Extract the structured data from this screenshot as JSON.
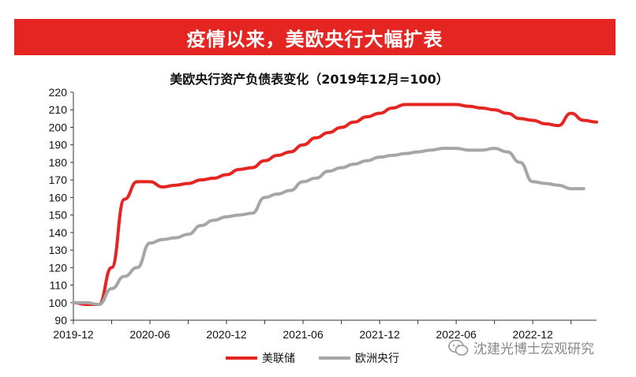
{
  "banner": {
    "title": "疫情以来，美欧央行大幅扩表",
    "color": "#e52521"
  },
  "watermark": {
    "text": "沈建光博士宏观研究",
    "icon": "wechat-icon"
  },
  "chart_data": {
    "type": "line",
    "title": "美欧央行资产负债表变化（2019年12月=100）",
    "xlabel": "",
    "ylabel": "",
    "ylim": [
      90,
      220
    ],
    "yticks": [
      90,
      100,
      110,
      120,
      130,
      140,
      150,
      160,
      170,
      180,
      190,
      200,
      210,
      220
    ],
    "xlim": [
      "2019-12",
      "2023-05"
    ],
    "xticks": [
      "2019-12",
      "2020-06",
      "2020-12",
      "2021-06",
      "2021-12",
      "2022-06",
      "2022-12"
    ],
    "grid": false,
    "legend": "bottom",
    "series": [
      {
        "name": "美联储",
        "color": "#e52521",
        "points": [
          [
            "2019-12",
            100
          ],
          [
            "2020-01",
            99
          ],
          [
            "2020-02",
            99
          ],
          [
            "2020-03",
            120
          ],
          [
            "2020-04",
            159
          ],
          [
            "2020-05",
            169
          ],
          [
            "2020-06",
            169
          ],
          [
            "2020-07",
            166
          ],
          [
            "2020-08",
            167
          ],
          [
            "2020-09",
            168
          ],
          [
            "2020-10",
            170
          ],
          [
            "2020-11",
            171
          ],
          [
            "2020-12",
            173
          ],
          [
            "2021-01",
            176
          ],
          [
            "2021-02",
            177
          ],
          [
            "2021-03",
            181
          ],
          [
            "2021-04",
            184
          ],
          [
            "2021-05",
            186
          ],
          [
            "2021-06",
            190
          ],
          [
            "2021-07",
            194
          ],
          [
            "2021-08",
            197
          ],
          [
            "2021-09",
            200
          ],
          [
            "2021-10",
            203
          ],
          [
            "2021-11",
            206
          ],
          [
            "2021-12",
            208
          ],
          [
            "2022-01",
            211
          ],
          [
            "2022-02",
            213
          ],
          [
            "2022-03",
            213
          ],
          [
            "2022-04",
            213
          ],
          [
            "2022-05",
            213
          ],
          [
            "2022-06",
            213
          ],
          [
            "2022-07",
            212
          ],
          [
            "2022-08",
            211
          ],
          [
            "2022-09",
            210
          ],
          [
            "2022-10",
            208
          ],
          [
            "2022-11",
            205
          ],
          [
            "2022-12",
            204
          ],
          [
            "2023-01",
            202
          ],
          [
            "2023-02",
            201
          ],
          [
            "2023-03",
            208
          ],
          [
            "2023-04",
            204
          ],
          [
            "2023-05",
            203
          ]
        ]
      },
      {
        "name": "欧洲央行",
        "color": "#a6a6a6",
        "points": [
          [
            "2019-12",
            100
          ],
          [
            "2020-01",
            100
          ],
          [
            "2020-02",
            99
          ],
          [
            "2020-03",
            108
          ],
          [
            "2020-04",
            115
          ],
          [
            "2020-05",
            120
          ],
          [
            "2020-06",
            134
          ],
          [
            "2020-07",
            136
          ],
          [
            "2020-08",
            137
          ],
          [
            "2020-09",
            139
          ],
          [
            "2020-10",
            144
          ],
          [
            "2020-11",
            147
          ],
          [
            "2020-12",
            149
          ],
          [
            "2021-01",
            150
          ],
          [
            "2021-02",
            151
          ],
          [
            "2021-03",
            160
          ],
          [
            "2021-04",
            162
          ],
          [
            "2021-05",
            164
          ],
          [
            "2021-06",
            169
          ],
          [
            "2021-07",
            171
          ],
          [
            "2021-08",
            175
          ],
          [
            "2021-09",
            177
          ],
          [
            "2021-10",
            179
          ],
          [
            "2021-11",
            181
          ],
          [
            "2021-12",
            183
          ],
          [
            "2022-01",
            184
          ],
          [
            "2022-02",
            185
          ],
          [
            "2022-03",
            186
          ],
          [
            "2022-04",
            187
          ],
          [
            "2022-05",
            188
          ],
          [
            "2022-06",
            188
          ],
          [
            "2022-07",
            187
          ],
          [
            "2022-08",
            187
          ],
          [
            "2022-09",
            188
          ],
          [
            "2022-10",
            186
          ],
          [
            "2022-11",
            180
          ],
          [
            "2022-12",
            169
          ],
          [
            "2023-01",
            168
          ],
          [
            "2023-02",
            167
          ],
          [
            "2023-03",
            165
          ],
          [
            "2023-04",
            165
          ]
        ]
      }
    ]
  }
}
